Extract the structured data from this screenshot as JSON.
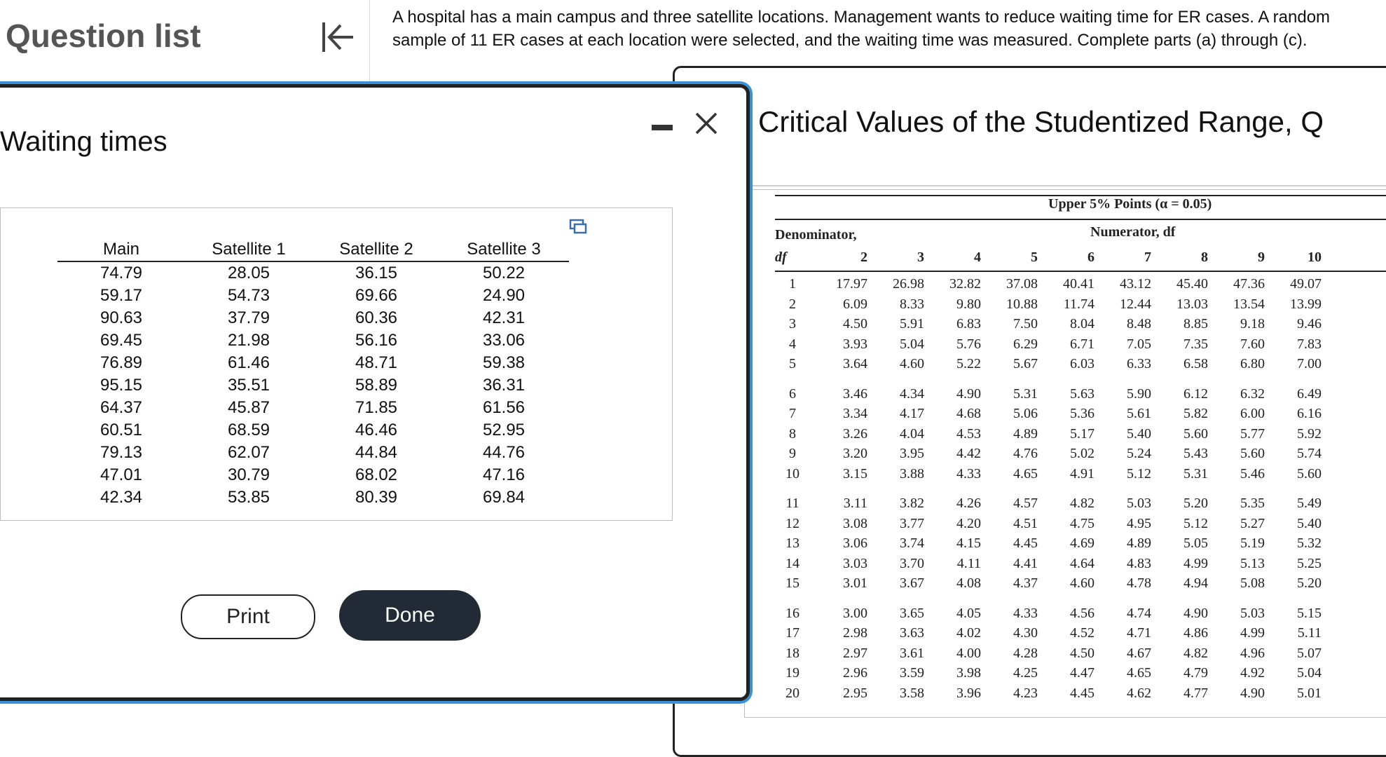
{
  "sidebar": {
    "title": "Question list"
  },
  "question": {
    "text": "A hospital has a main campus and three satellite locations. Management wants to reduce waiting time for ER cases. A random sample of 11 ER cases at each location were selected, and the waiting time was measured. Complete parts (a) through (c)."
  },
  "dialog": {
    "title": "Waiting times",
    "print_label": "Print",
    "done_label": "Done",
    "columns": [
      "Main",
      "Satellite 1",
      "Satellite 2",
      "Satellite 3"
    ],
    "rows": [
      [
        "74.79",
        "28.05",
        "36.15",
        "50.22"
      ],
      [
        "59.17",
        "54.73",
        "69.66",
        "24.90"
      ],
      [
        "90.63",
        "37.79",
        "60.36",
        "42.31"
      ],
      [
        "69.45",
        "21.98",
        "56.16",
        "33.06"
      ],
      [
        "76.89",
        "61.46",
        "48.71",
        "59.38"
      ],
      [
        "95.15",
        "35.51",
        "58.89",
        "36.31"
      ],
      [
        "64.37",
        "45.87",
        "71.85",
        "61.56"
      ],
      [
        "60.51",
        "68.59",
        "46.46",
        "52.95"
      ],
      [
        "79.13",
        "62.07",
        "44.84",
        "44.76"
      ],
      [
        "47.01",
        "30.79",
        "68.02",
        "47.16"
      ],
      [
        "42.34",
        "53.85",
        "80.39",
        "69.84"
      ]
    ]
  },
  "reference": {
    "title": "Critical Values of the Studentized Range, Q",
    "caption": "Upper 5% Points (α = 0.05)",
    "numerator_label": "Numerator, df",
    "denominator_label": "Denominator,",
    "denominator_sub": "df",
    "numerator_cols": [
      "2",
      "3",
      "4",
      "5",
      "6",
      "7",
      "8",
      "9",
      "10"
    ],
    "rows": [
      {
        "df": "1",
        "v": [
          "17.97",
          "26.98",
          "32.82",
          "37.08",
          "40.41",
          "43.12",
          "45.40",
          "47.36",
          "49.07"
        ]
      },
      {
        "df": "2",
        "v": [
          "6.09",
          "8.33",
          "9.80",
          "10.88",
          "11.74",
          "12.44",
          "13.03",
          "13.54",
          "13.99"
        ]
      },
      {
        "df": "3",
        "v": [
          "4.50",
          "5.91",
          "6.83",
          "7.50",
          "8.04",
          "8.48",
          "8.85",
          "9.18",
          "9.46"
        ]
      },
      {
        "df": "4",
        "v": [
          "3.93",
          "5.04",
          "5.76",
          "6.29",
          "6.71",
          "7.05",
          "7.35",
          "7.60",
          "7.83"
        ]
      },
      {
        "df": "5",
        "v": [
          "3.64",
          "4.60",
          "5.22",
          "5.67",
          "6.03",
          "6.33",
          "6.58",
          "6.80",
          "7.00"
        ]
      },
      {
        "df": "6",
        "v": [
          "3.46",
          "4.34",
          "4.90",
          "5.31",
          "5.63",
          "5.90",
          "6.12",
          "6.32",
          "6.49"
        ]
      },
      {
        "df": "7",
        "v": [
          "3.34",
          "4.17",
          "4.68",
          "5.06",
          "5.36",
          "5.61",
          "5.82",
          "6.00",
          "6.16"
        ]
      },
      {
        "df": "8",
        "v": [
          "3.26",
          "4.04",
          "4.53",
          "4.89",
          "5.17",
          "5.40",
          "5.60",
          "5.77",
          "5.92"
        ]
      },
      {
        "df": "9",
        "v": [
          "3.20",
          "3.95",
          "4.42",
          "4.76",
          "5.02",
          "5.24",
          "5.43",
          "5.60",
          "5.74"
        ]
      },
      {
        "df": "10",
        "v": [
          "3.15",
          "3.88",
          "4.33",
          "4.65",
          "4.91",
          "5.12",
          "5.31",
          "5.46",
          "5.60"
        ]
      },
      {
        "df": "11",
        "v": [
          "3.11",
          "3.82",
          "4.26",
          "4.57",
          "4.82",
          "5.03",
          "5.20",
          "5.35",
          "5.49"
        ]
      },
      {
        "df": "12",
        "v": [
          "3.08",
          "3.77",
          "4.20",
          "4.51",
          "4.75",
          "4.95",
          "5.12",
          "5.27",
          "5.40"
        ]
      },
      {
        "df": "13",
        "v": [
          "3.06",
          "3.74",
          "4.15",
          "4.45",
          "4.69",
          "4.89",
          "5.05",
          "5.19",
          "5.32"
        ]
      },
      {
        "df": "14",
        "v": [
          "3.03",
          "3.70",
          "4.11",
          "4.41",
          "4.64",
          "4.83",
          "4.99",
          "5.13",
          "5.25"
        ]
      },
      {
        "df": "15",
        "v": [
          "3.01",
          "3.67",
          "4.08",
          "4.37",
          "4.60",
          "4.78",
          "4.94",
          "5.08",
          "5.20"
        ]
      },
      {
        "df": "16",
        "v": [
          "3.00",
          "3.65",
          "4.05",
          "4.33",
          "4.56",
          "4.74",
          "4.90",
          "5.03",
          "5.15"
        ]
      },
      {
        "df": "17",
        "v": [
          "2.98",
          "3.63",
          "4.02",
          "4.30",
          "4.52",
          "4.71",
          "4.86",
          "4.99",
          "5.11"
        ]
      },
      {
        "df": "18",
        "v": [
          "2.97",
          "3.61",
          "4.00",
          "4.28",
          "4.50",
          "4.67",
          "4.82",
          "4.96",
          "5.07"
        ]
      },
      {
        "df": "19",
        "v": [
          "2.96",
          "3.59",
          "3.98",
          "4.25",
          "4.47",
          "4.65",
          "4.79",
          "4.92",
          "5.04"
        ]
      },
      {
        "df": "20",
        "v": [
          "2.95",
          "3.58",
          "3.96",
          "4.23",
          "4.45",
          "4.62",
          "4.77",
          "4.90",
          "5.01"
        ]
      }
    ]
  },
  "icons": {
    "collapse": "collapse-left-icon",
    "close": "close-icon",
    "minimize": "minimize-icon",
    "copy": "copy-icon"
  },
  "colors": {
    "done_button": "#222a35",
    "dialog_glow": "#3d8fd6"
  }
}
